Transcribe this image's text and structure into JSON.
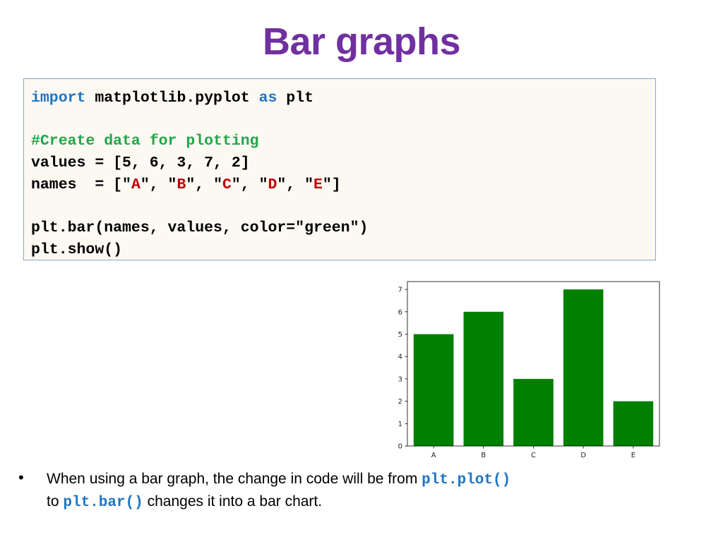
{
  "slide": {
    "title": "Bar graphs"
  },
  "code": {
    "line1": {
      "kw1": "import",
      "mod": " matplotlib.pyplot ",
      "kw2": "as",
      "alias": " plt"
    },
    "line3": {
      "comment": "#Create data for plotting"
    },
    "line4": {
      "text": "values = [5, 6, 3, 7, 2]"
    },
    "line5": {
      "prefix": "names  = [\"",
      "a": "A",
      "sep1": "\", \"",
      "b": "B",
      "sep2": "\", \"",
      "c": "C",
      "sep3": "\", \"",
      "d": "D",
      "sep4": "\", \"",
      "e": "E",
      "suffix": "\"]"
    },
    "line7": {
      "text": "plt.bar(names, values, color=\"green\")"
    },
    "line8": {
      "text": "plt.show()"
    },
    "colors": {
      "keyword": "#1f75c4",
      "comment": "#21a64a",
      "string": "#c00000"
    }
  },
  "chart_data": {
    "type": "bar",
    "categories": [
      "A",
      "B",
      "C",
      "D",
      "E"
    ],
    "values": [
      5,
      6,
      3,
      7,
      2
    ],
    "yticks": [
      0,
      1,
      2,
      3,
      4,
      5,
      6,
      7
    ],
    "ylim": [
      0,
      7.35
    ],
    "bar_color": "#008000",
    "title": "",
    "xlabel": "",
    "ylabel": ""
  },
  "bullet": {
    "symbol": "•",
    "text_before": "When using a bar graph, the change in code will be from ",
    "code1": "plt.plot()",
    "text_middle": " to ",
    "code2": "plt.bar()",
    "text_after": "  changes it into a bar chart."
  }
}
